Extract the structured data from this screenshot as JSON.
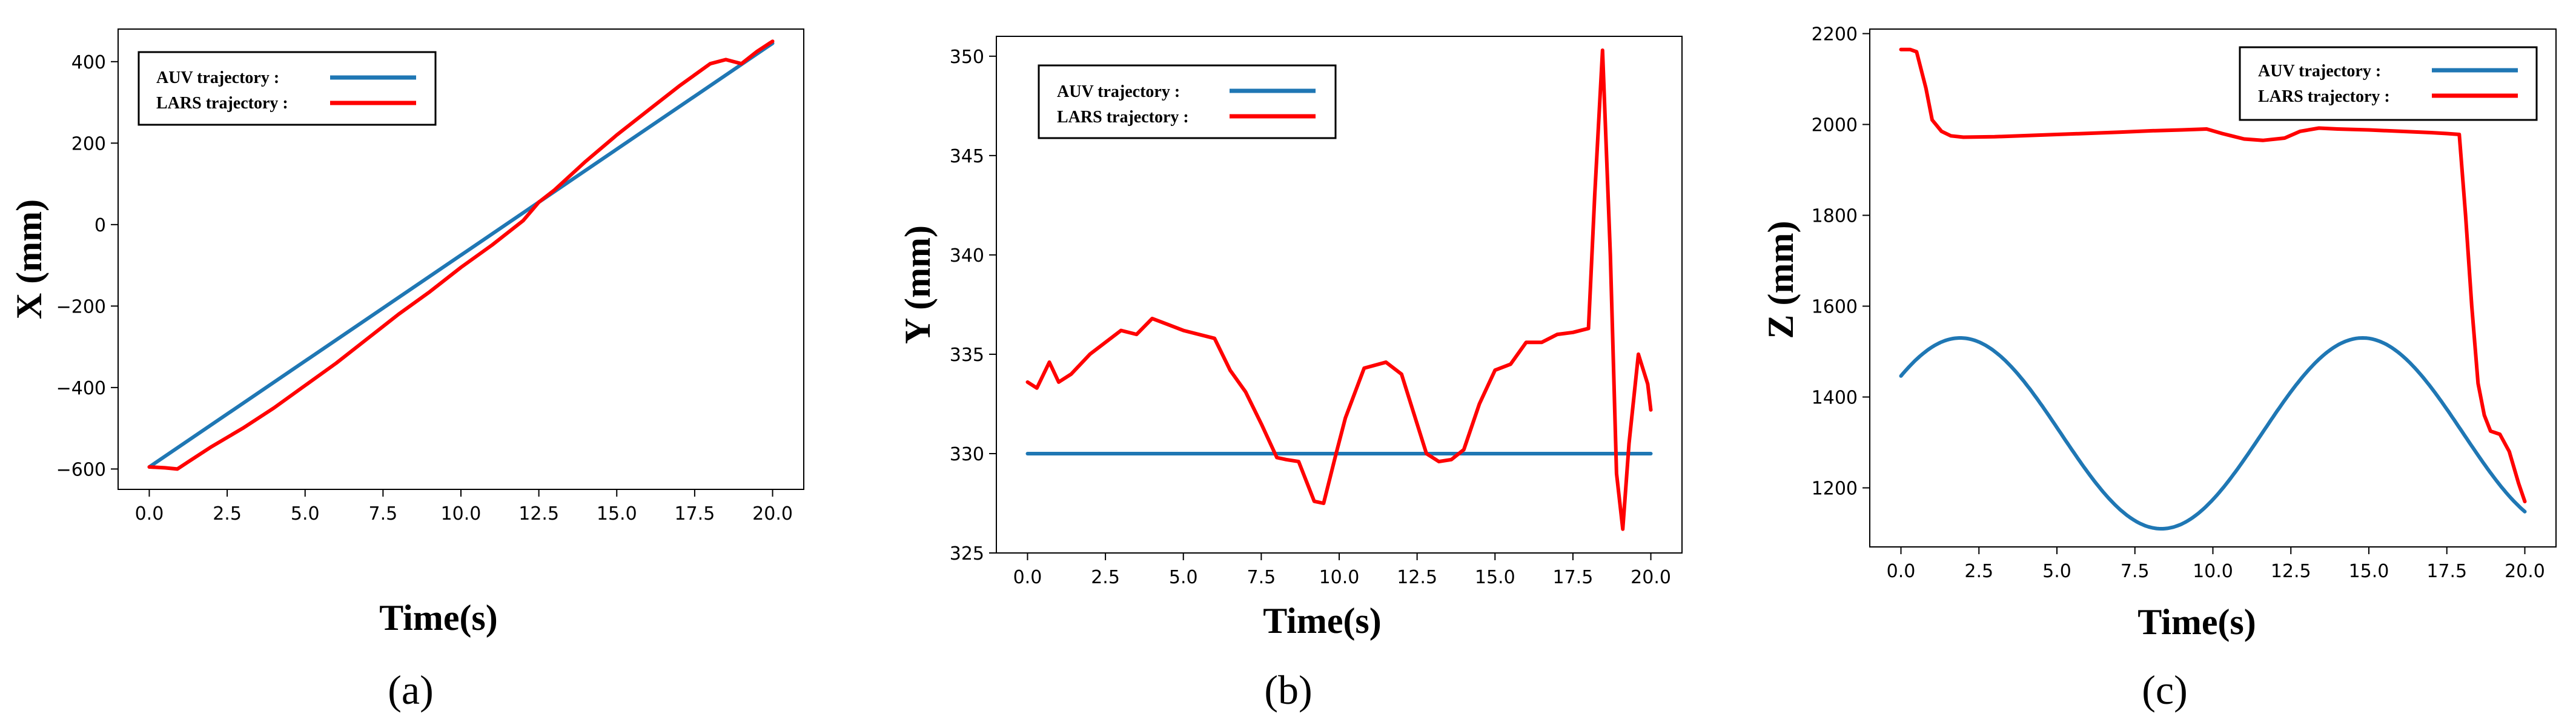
{
  "figure": {
    "panel_labels": [
      "(a)",
      "(b)",
      "(c)"
    ]
  },
  "chart_data": [
    {
      "type": "line",
      "panel": "(a)",
      "xlabel": "Time(s)",
      "ylabel": "X (mm)",
      "xlim": [
        -1,
        21
      ],
      "ylim": [
        -650,
        480
      ],
      "xticks": [
        0,
        2.5,
        5,
        7.5,
        10,
        12.5,
        15,
        17.5,
        20
      ],
      "xtick_labels": [
        "0.0",
        "2.5",
        "5.0",
        "7.5",
        "10.0",
        "12.5",
        "15.0",
        "17.5",
        "20.0"
      ],
      "yticks": [
        -600,
        -400,
        -200,
        0,
        200,
        400
      ],
      "ytick_labels": [
        "−600",
        "−400",
        "−200",
        "0",
        "200",
        "400"
      ],
      "legend_position": "top-left",
      "series": [
        {
          "name": "AUV  trajectory  :",
          "color": "#1f77b4",
          "x": [
            0,
            20
          ],
          "y": [
            -595,
            445
          ]
        },
        {
          "name": "LARS trajectory :",
          "color": "#ff0000",
          "x": [
            0,
            0.5,
            0.9,
            1.3,
            2,
            3,
            4,
            5,
            6,
            7,
            8,
            9,
            10,
            11,
            12,
            12.5,
            13,
            14,
            15,
            16,
            17,
            18,
            18.5,
            19,
            19.5,
            20
          ],
          "y": [
            -595,
            -597,
            -600,
            -580,
            -545,
            -500,
            -450,
            -395,
            -340,
            -280,
            -220,
            -165,
            -105,
            -50,
            10,
            55,
            85,
            155,
            220,
            280,
            340,
            395,
            405,
            395,
            425,
            450
          ]
        }
      ]
    },
    {
      "type": "line",
      "panel": "(b)",
      "xlabel": "Time(s)",
      "ylabel": "Y (mm)",
      "xlim": [
        -1,
        21
      ],
      "ylim": [
        325,
        351
      ],
      "xticks": [
        0,
        2.5,
        5,
        7.5,
        10,
        12.5,
        15,
        17.5,
        20
      ],
      "xtick_labels": [
        "0.0",
        "2.5",
        "5.0",
        "7.5",
        "10.0",
        "12.5",
        "15.0",
        "17.5",
        "20.0"
      ],
      "yticks": [
        325,
        330,
        335,
        340,
        345,
        350
      ],
      "ytick_labels": [
        "325",
        "330",
        "335",
        "340",
        "345",
        "350"
      ],
      "legend_position": "top-left",
      "series": [
        {
          "name": "AUV  trajectory  :",
          "color": "#1f77b4",
          "x": [
            0,
            20
          ],
          "y": [
            330,
            330
          ]
        },
        {
          "name": "LARS trajectory :",
          "color": "#ff0000",
          "x": [
            0,
            0.3,
            0.7,
            1.0,
            1.4,
            2.0,
            2.5,
            3.0,
            3.5,
            4.0,
            4.5,
            5.0,
            6.0,
            6.5,
            7.0,
            7.5,
            8.0,
            8.3,
            8.7,
            9.2,
            9.5,
            9.9,
            10.2,
            10.8,
            11.5,
            12.0,
            12.3,
            12.8,
            13.2,
            13.6,
            14.0,
            14.5,
            15.0,
            15.5,
            16.0,
            16.5,
            17.0,
            17.5,
            18.0,
            18.2,
            18.45,
            18.7,
            18.9,
            19.1,
            19.3,
            19.6,
            19.9,
            20.0
          ],
          "y": [
            333.6,
            333.3,
            334.6,
            333.6,
            334.0,
            335.0,
            335.6,
            336.2,
            336.0,
            336.8,
            336.5,
            336.2,
            335.8,
            334.2,
            333.1,
            331.5,
            329.8,
            329.7,
            329.6,
            327.6,
            327.5,
            330.0,
            331.8,
            334.3,
            334.6,
            334.0,
            332.5,
            330.0,
            329.6,
            329.7,
            330.2,
            332.5,
            334.2,
            334.5,
            335.6,
            335.6,
            336.0,
            336.1,
            336.3,
            343.0,
            350.3,
            340.0,
            329.0,
            326.2,
            330.5,
            335.0,
            333.5,
            332.2
          ]
        }
      ]
    },
    {
      "type": "line",
      "panel": "(c)",
      "xlabel": "Time(s)",
      "ylabel": "Z (mm)",
      "xlim": [
        -1,
        21
      ],
      "ylim": [
        1070,
        2210
      ],
      "xticks": [
        0,
        2.5,
        5,
        7.5,
        10,
        12.5,
        15,
        17.5,
        20
      ],
      "xtick_labels": [
        "0.0",
        "2.5",
        "5.0",
        "7.5",
        "10.0",
        "12.5",
        "15.0",
        "17.5",
        "20.0"
      ],
      "yticks": [
        1200,
        1400,
        1600,
        1800,
        2000,
        2200
      ],
      "ytick_labels": [
        "1200",
        "1400",
        "1600",
        "1800",
        "2000",
        "2200"
      ],
      "legend_position": "top-right",
      "series": [
        {
          "name": "AUV  trajectory  :",
          "color": "#1f77b4",
          "function": "sine",
          "center": 1320,
          "amplitude": 210,
          "period": 12.9,
          "peak_time": 1.9,
          "x": [
            0,
            20
          ]
        },
        {
          "name": "LARS trajectory :",
          "color": "#ff0000",
          "x": [
            0,
            0.3,
            0.5,
            0.8,
            1.0,
            1.3,
            1.6,
            2.0,
            3,
            5,
            7,
            8,
            9,
            9.8,
            10.3,
            11,
            11.6,
            12.3,
            12.8,
            13.4,
            14,
            15,
            16,
            17,
            17.5,
            17.9,
            18.1,
            18.3,
            18.5,
            18.7,
            18.9,
            19.2,
            19.5,
            19.8,
            20.0
          ],
          "y": [
            2165,
            2165,
            2160,
            2080,
            2010,
            1985,
            1975,
            1972,
            1973,
            1978,
            1983,
            1986,
            1988,
            1990,
            1980,
            1968,
            1965,
            1970,
            1985,
            1992,
            1990,
            1988,
            1985,
            1982,
            1980,
            1978,
            1800,
            1600,
            1430,
            1360,
            1325,
            1318,
            1280,
            1210,
            1170
          ]
        }
      ]
    }
  ]
}
